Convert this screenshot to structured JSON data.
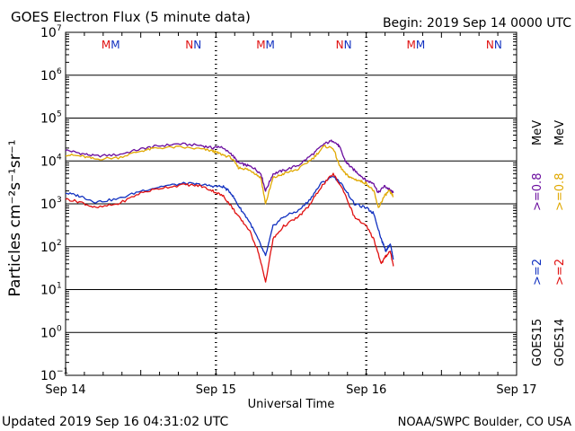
{
  "colors": {
    "goes15_e08": "#6a0d9e",
    "goes14_e08": "#e0a800",
    "goes15_e2": "#1030c0",
    "goes14_e2": "#e01010",
    "axis": "#000000"
  },
  "chart_data": {
    "type": "line",
    "title": "GOES Electron Flux (5 minute data)",
    "begin_label": "Begin: 2019 Sep 14 0000 UTC",
    "xlabel": "Universal Time",
    "ylabel": "Particles cm⁻²s⁻¹sr⁻¹",
    "updated": "Updated 2019 Sep 16 04:31:02 UTC",
    "credit": "NOAA/SWPC Boulder, CO USA",
    "x_unit": "days since 2019 Sep 14 00:00 UTC",
    "xlim": [
      0,
      3
    ],
    "ylim_log10": [
      -1,
      7
    ],
    "x_ticks": [
      {
        "x": 0,
        "label": "Sep 14"
      },
      {
        "x": 1,
        "label": "Sep 15"
      },
      {
        "x": 2,
        "label": "Sep 16"
      },
      {
        "x": 3,
        "label": "Sep 17"
      }
    ],
    "y_ticks": [
      {
        "exp": 7,
        "label": "10",
        "sup": "7"
      },
      {
        "exp": 6,
        "label": "10",
        "sup": "6"
      },
      {
        "exp": 5,
        "label": "10",
        "sup": "5"
      },
      {
        "exp": 4,
        "label": "10",
        "sup": "4"
      },
      {
        "exp": 3,
        "label": "10",
        "sup": "3"
      },
      {
        "exp": 2,
        "label": "10",
        "sup": "2"
      },
      {
        "exp": 1,
        "label": "10",
        "sup": "1"
      },
      {
        "exp": 0,
        "label": "10",
        "sup": "0"
      },
      {
        "exp": -1,
        "label": "10",
        "sup": "−1"
      }
    ],
    "reference_line": {
      "y": 1000,
      "style": "dashed"
    },
    "orbit_markers": [
      {
        "x": 0.3,
        "text": "MM",
        "color": "red_blue"
      },
      {
        "x": 0.85,
        "text": "NN",
        "color": "red_blue"
      },
      {
        "x": 1.33,
        "text": "MM",
        "color": "red_blue"
      },
      {
        "x": 1.85,
        "text": "NN",
        "color": "red_blue"
      },
      {
        "x": 2.33,
        "text": "MM",
        "color": "red_blue"
      },
      {
        "x": 2.85,
        "text": "NN",
        "color": "red_blue"
      }
    ],
    "legend": [
      {
        "text": "GOES15",
        "color": "#000000"
      },
      {
        "text": ">=2",
        "color": "#1030c0"
      },
      {
        "text": ">=0.8",
        "color": "#6a0d9e"
      },
      {
        "text": "MeV",
        "color": "#000000"
      },
      {
        "text": "GOES14",
        "color": "#000000"
      },
      {
        "text": ">=2",
        "color": "#e01010"
      },
      {
        "text": ">=0.8",
        "color": "#e0a800"
      },
      {
        "text": "MeV",
        "color": "#000000"
      }
    ],
    "series": [
      {
        "name": "GOES15 >=0.8 MeV",
        "color": "#6a0d9e",
        "x": [
          0,
          0.1,
          0.2,
          0.35,
          0.5,
          0.6,
          0.75,
          0.9,
          0.98,
          1.02,
          1.1,
          1.15,
          1.2,
          1.25,
          1.3,
          1.33,
          1.38,
          1.45,
          1.55,
          1.65,
          1.72,
          1.78,
          1.82,
          1.86,
          1.9,
          1.95,
          2.0,
          2.05,
          2.08,
          2.12,
          2.15,
          2.18
        ],
        "y": [
          18000,
          15000,
          13000,
          14000,
          19000,
          22000,
          25000,
          23000,
          20000,
          22000,
          15000,
          9000,
          8000,
          7000,
          5000,
          2000,
          5000,
          6000,
          8000,
          15000,
          25000,
          30000,
          22000,
          10000,
          7000,
          5000,
          3500,
          3000,
          1800,
          2600,
          2200,
          1800
        ]
      },
      {
        "name": "GOES14 >=0.8 MeV",
        "color": "#e0a800",
        "x": [
          0,
          0.1,
          0.2,
          0.35,
          0.5,
          0.6,
          0.75,
          0.9,
          0.98,
          1.02,
          1.1,
          1.15,
          1.2,
          1.25,
          1.3,
          1.33,
          1.38,
          1.45,
          1.55,
          1.65,
          1.72,
          1.78,
          1.82,
          1.86,
          1.9,
          1.95,
          2.0,
          2.05,
          2.08,
          2.12,
          2.15,
          2.18
        ],
        "y": [
          14000,
          13000,
          11000,
          12000,
          17000,
          20000,
          21000,
          19000,
          17000,
          15000,
          12000,
          7000,
          6500,
          5500,
          4000,
          1000,
          4000,
          5000,
          6500,
          12000,
          22000,
          20000,
          8000,
          5000,
          4000,
          3500,
          3000,
          2000,
          800,
          1500,
          2000,
          1500
        ]
      },
      {
        "name": "GOES15 >=2 MeV",
        "color": "#1030c0",
        "x": [
          0,
          0.1,
          0.2,
          0.35,
          0.5,
          0.65,
          0.8,
          0.9,
          0.98,
          1.05,
          1.1,
          1.15,
          1.22,
          1.28,
          1.33,
          1.38,
          1.45,
          1.55,
          1.62,
          1.7,
          1.78,
          1.85,
          1.92,
          2.0,
          2.05,
          2.1,
          2.13,
          2.16,
          2.18
        ],
        "y": [
          1800,
          1500,
          1100,
          1300,
          2000,
          2600,
          3000,
          2800,
          2600,
          2500,
          1800,
          900,
          400,
          150,
          60,
          300,
          500,
          700,
          1200,
          3000,
          4500,
          2500,
          1000,
          800,
          600,
          150,
          80,
          120,
          50
        ]
      },
      {
        "name": "GOES14 >=2 MeV",
        "color": "#e01010",
        "x": [
          0,
          0.1,
          0.2,
          0.35,
          0.5,
          0.65,
          0.8,
          0.9,
          0.98,
          1.05,
          1.1,
          1.15,
          1.22,
          1.28,
          1.33,
          1.38,
          1.45,
          1.55,
          1.62,
          1.7,
          1.78,
          1.85,
          1.92,
          2.0,
          2.05,
          2.1,
          2.13,
          2.16,
          2.18
        ],
        "y": [
          1300,
          1100,
          800,
          1000,
          1800,
          2400,
          2800,
          2600,
          2000,
          1500,
          900,
          500,
          250,
          80,
          15,
          150,
          300,
          500,
          900,
          2500,
          5000,
          2000,
          500,
          300,
          150,
          40,
          60,
          80,
          35
        ]
      }
    ]
  }
}
